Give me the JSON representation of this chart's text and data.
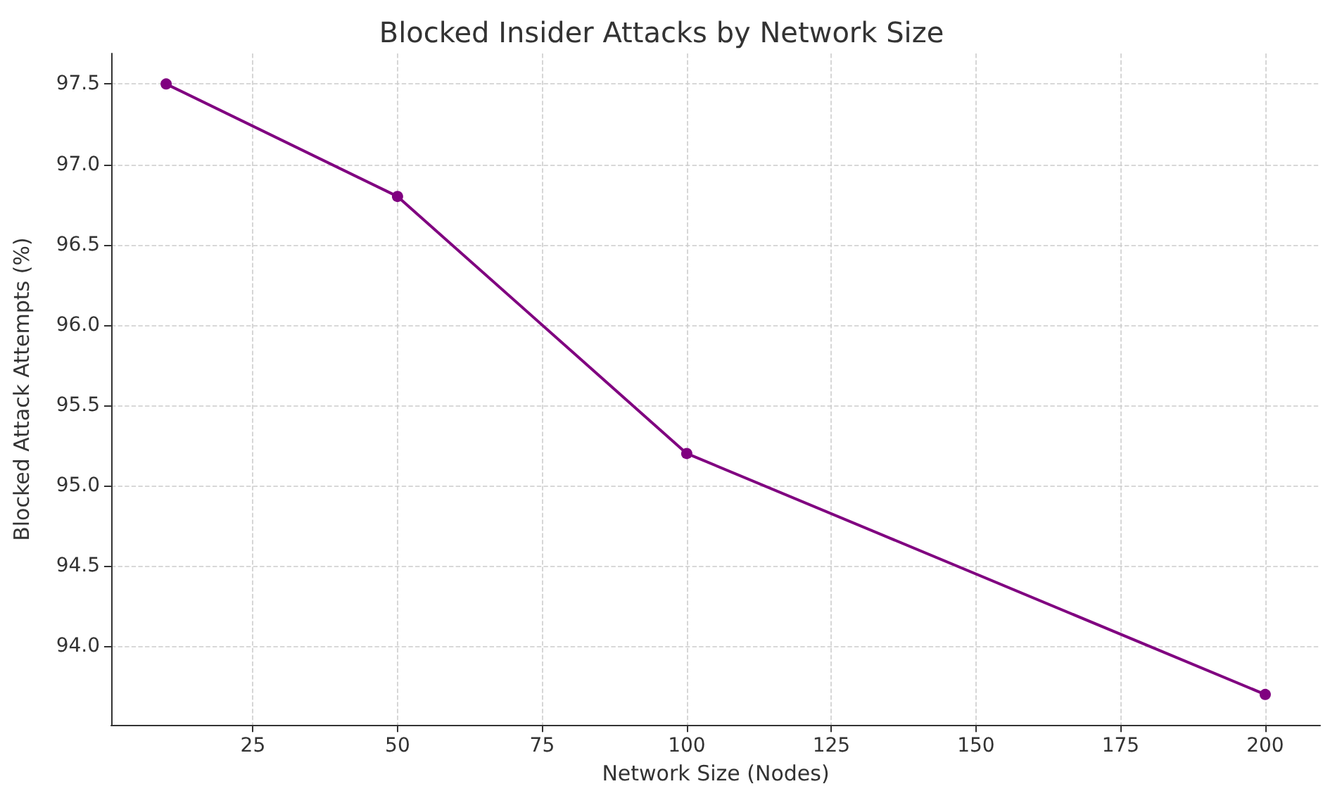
{
  "chart_data": {
    "type": "line",
    "title": "Blocked Insider Attacks by Network Size",
    "xlabel": "Network Size (Nodes)",
    "ylabel": "Blocked Attack Attempts (%)",
    "x": [
      10,
      50,
      100,
      200
    ],
    "series": [
      {
        "color": "#800080",
        "values": [
          97.5,
          96.8,
          95.2,
          93.7
        ]
      }
    ],
    "xlim": [
      0.5,
      209.5
    ],
    "xticks": [
      25,
      50,
      75,
      100,
      125,
      150,
      175,
      200
    ],
    "ylim": [
      93.51,
      97.69
    ],
    "yticks": [
      {
        "value": 94,
        "label": "94.0"
      },
      94.5,
      {
        "value": 95,
        "label": "95.0"
      },
      95.5,
      {
        "value": 96,
        "label": "96.0"
      },
      96.5,
      {
        "value": 97,
        "label": "97.0"
      },
      97.5
    ],
    "grid": true,
    "marker": "circle",
    "line_style": "solid"
  }
}
